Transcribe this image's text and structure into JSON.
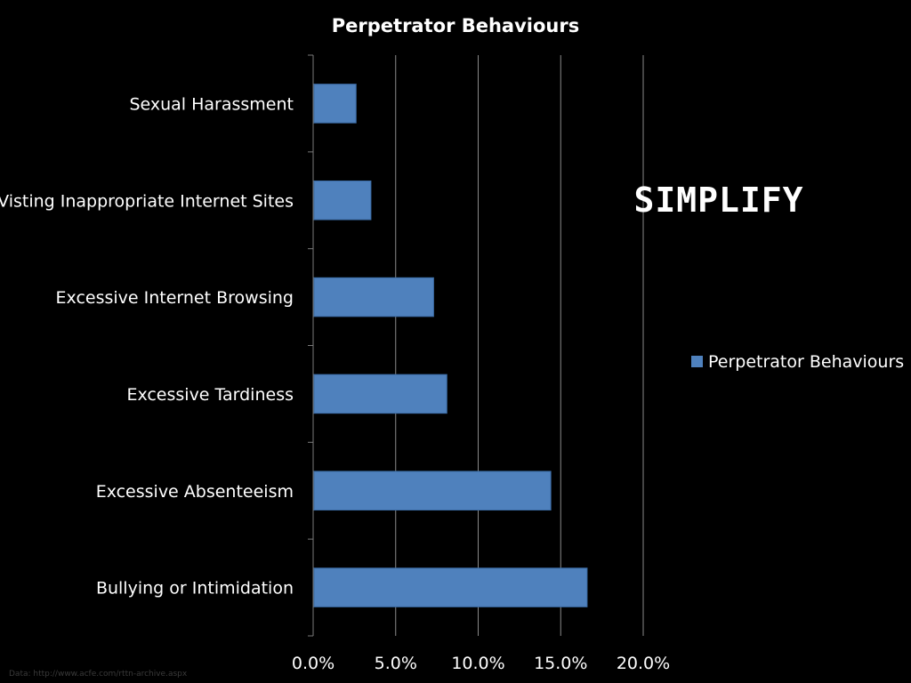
{
  "brand": "SIMPLIFY",
  "source_note": "Data: http://www.acfe.com/rttn-archive.aspx",
  "colors": {
    "background": "#000000",
    "bar": "#4f81bd",
    "bar_edge": "#3a6aa3",
    "grid": "#8a8a8a",
    "axis": "#7a7a7a",
    "text": "#ffffff"
  },
  "chart_data": {
    "type": "bar",
    "orientation": "horizontal",
    "title": "Perpetrator Behaviours",
    "categories": [
      "Sexual Harassment",
      "Visting Inappropriate Internet Sites",
      "Excessive Internet Browsing",
      "Excessive Tardiness",
      "Excessive Absenteeism",
      "Bullying or Intimidation"
    ],
    "series": [
      {
        "name": "Perpetrator Behaviours",
        "values": [
          2.6,
          3.5,
          7.3,
          8.1,
          14.4,
          16.6
        ]
      }
    ],
    "xlim": [
      0,
      20
    ],
    "xticks": [
      0,
      5,
      10,
      15,
      20
    ],
    "xtick_labels": [
      "0.0%",
      "5.0%",
      "10.0%",
      "15.0%",
      "20.0%"
    ],
    "xlabel": "",
    "ylabel": "",
    "grid": "vertical",
    "legend_position": "right"
  }
}
